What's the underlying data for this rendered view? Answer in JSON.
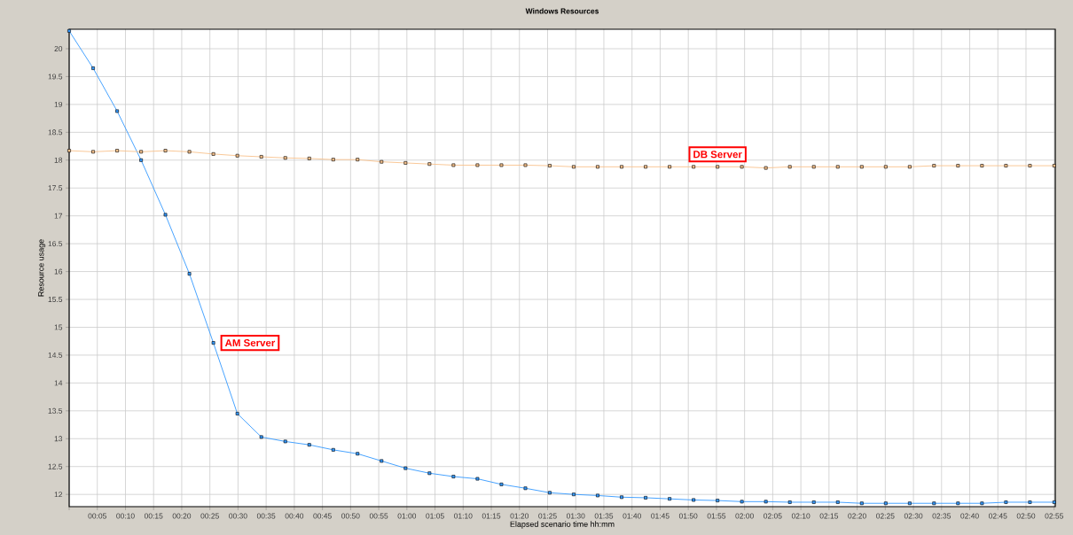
{
  "chart_data": {
    "type": "line",
    "title": "Windows Resources",
    "xlabel": "Elapsed scenario time hh:mm",
    "ylabel": "Resource usage",
    "x": [
      0,
      0.071,
      0.142,
      0.213,
      0.285,
      0.356,
      0.427,
      0.498,
      0.569,
      0.64,
      0.711,
      0.782,
      0.854,
      0.925,
      0.996,
      1.067,
      1.138,
      1.209,
      1.28,
      1.351,
      1.423,
      1.494,
      1.565,
      1.636,
      1.707,
      1.778,
      1.849,
      1.92,
      1.992,
      2.063,
      2.134,
      2.205,
      2.276,
      2.347,
      2.418,
      2.489,
      2.561,
      2.632,
      2.703,
      2.774,
      2.845,
      2.917
    ],
    "series": [
      {
        "name": "AM Server",
        "color": "#3399ff",
        "values": [
          20.32,
          19.65,
          18.88,
          18.0,
          17.02,
          15.96,
          14.72,
          13.45,
          13.03,
          12.95,
          12.89,
          12.8,
          12.73,
          12.6,
          12.47,
          12.38,
          12.32,
          12.28,
          12.18,
          12.11,
          12.03,
          12.0,
          11.98,
          11.95,
          11.94,
          11.92,
          11.9,
          11.89,
          11.87,
          11.87,
          11.86,
          11.86,
          11.86,
          11.84,
          11.84,
          11.84,
          11.84,
          11.84,
          11.84,
          11.86,
          11.86,
          11.86
        ]
      },
      {
        "name": "DB Server",
        "color": "#f8c28c",
        "values": [
          18.17,
          18.15,
          18.17,
          18.15,
          18.17,
          18.15,
          18.11,
          18.08,
          18.06,
          18.04,
          18.03,
          18.01,
          18.01,
          17.97,
          17.95,
          17.93,
          17.91,
          17.91,
          17.91,
          17.91,
          17.9,
          17.88,
          17.88,
          17.88,
          17.88,
          17.88,
          17.88,
          17.88,
          17.88,
          17.86,
          17.88,
          17.88,
          17.88,
          17.88,
          17.88,
          17.88,
          17.9,
          17.9,
          17.9,
          17.9,
          17.9,
          17.9
        ]
      }
    ],
    "xlim": [
      0,
      2.92
    ],
    "ylim": [
      11.78,
      20.35
    ],
    "xticks": [
      {
        "value": 0,
        "label": null
      },
      {
        "value": 0.0833,
        "label": "00:05"
      },
      {
        "value": 0.1667,
        "label": "00:10"
      },
      {
        "value": 0.25,
        "label": "00:15"
      },
      {
        "value": 0.3333,
        "label": "00:20"
      },
      {
        "value": 0.4167,
        "label": "00:25"
      },
      {
        "value": 0.5,
        "label": "00:30"
      },
      {
        "value": 0.5833,
        "label": "00:35"
      },
      {
        "value": 0.6667,
        "label": "00:40"
      },
      {
        "value": 0.75,
        "label": "00:45"
      },
      {
        "value": 0.8333,
        "label": "00:50"
      },
      {
        "value": 0.9167,
        "label": "00:55"
      },
      {
        "value": 1,
        "label": "01:00"
      },
      {
        "value": 1.0833,
        "label": "01:05"
      },
      {
        "value": 1.1667,
        "label": "01:10"
      },
      {
        "value": 1.25,
        "label": "01:15"
      },
      {
        "value": 1.3333,
        "label": "01:20"
      },
      {
        "value": 1.4167,
        "label": "01:25"
      },
      {
        "value": 1.5,
        "label": "01:30"
      },
      {
        "value": 1.5833,
        "label": "01:35"
      },
      {
        "value": 1.6667,
        "label": "01:40"
      },
      {
        "value": 1.75,
        "label": "01:45"
      },
      {
        "value": 1.8333,
        "label": "01:50"
      },
      {
        "value": 1.9167,
        "label": "01:55"
      },
      {
        "value": 2,
        "label": "02:00"
      },
      {
        "value": 2.0833,
        "label": "02:05"
      },
      {
        "value": 2.1667,
        "label": "02:10"
      },
      {
        "value": 2.25,
        "label": "02:15"
      },
      {
        "value": 2.3333,
        "label": "02:20"
      },
      {
        "value": 2.4167,
        "label": "02:25"
      },
      {
        "value": 2.5,
        "label": "02:30"
      },
      {
        "value": 2.5833,
        "label": "02:35"
      },
      {
        "value": 2.6667,
        "label": "02:40"
      },
      {
        "value": 2.75,
        "label": "02:45"
      },
      {
        "value": 2.8333,
        "label": "02:50"
      },
      {
        "value": 2.9167,
        "label": "02:55"
      }
    ],
    "yticks": [
      12,
      12.5,
      13,
      13.5,
      14,
      14.5,
      15,
      15.5,
      16,
      16.5,
      17,
      17.5,
      18,
      18.5,
      19,
      19.5,
      20
    ],
    "grid": true,
    "legend": false,
    "marker": "square",
    "line_style": "solid"
  }
}
